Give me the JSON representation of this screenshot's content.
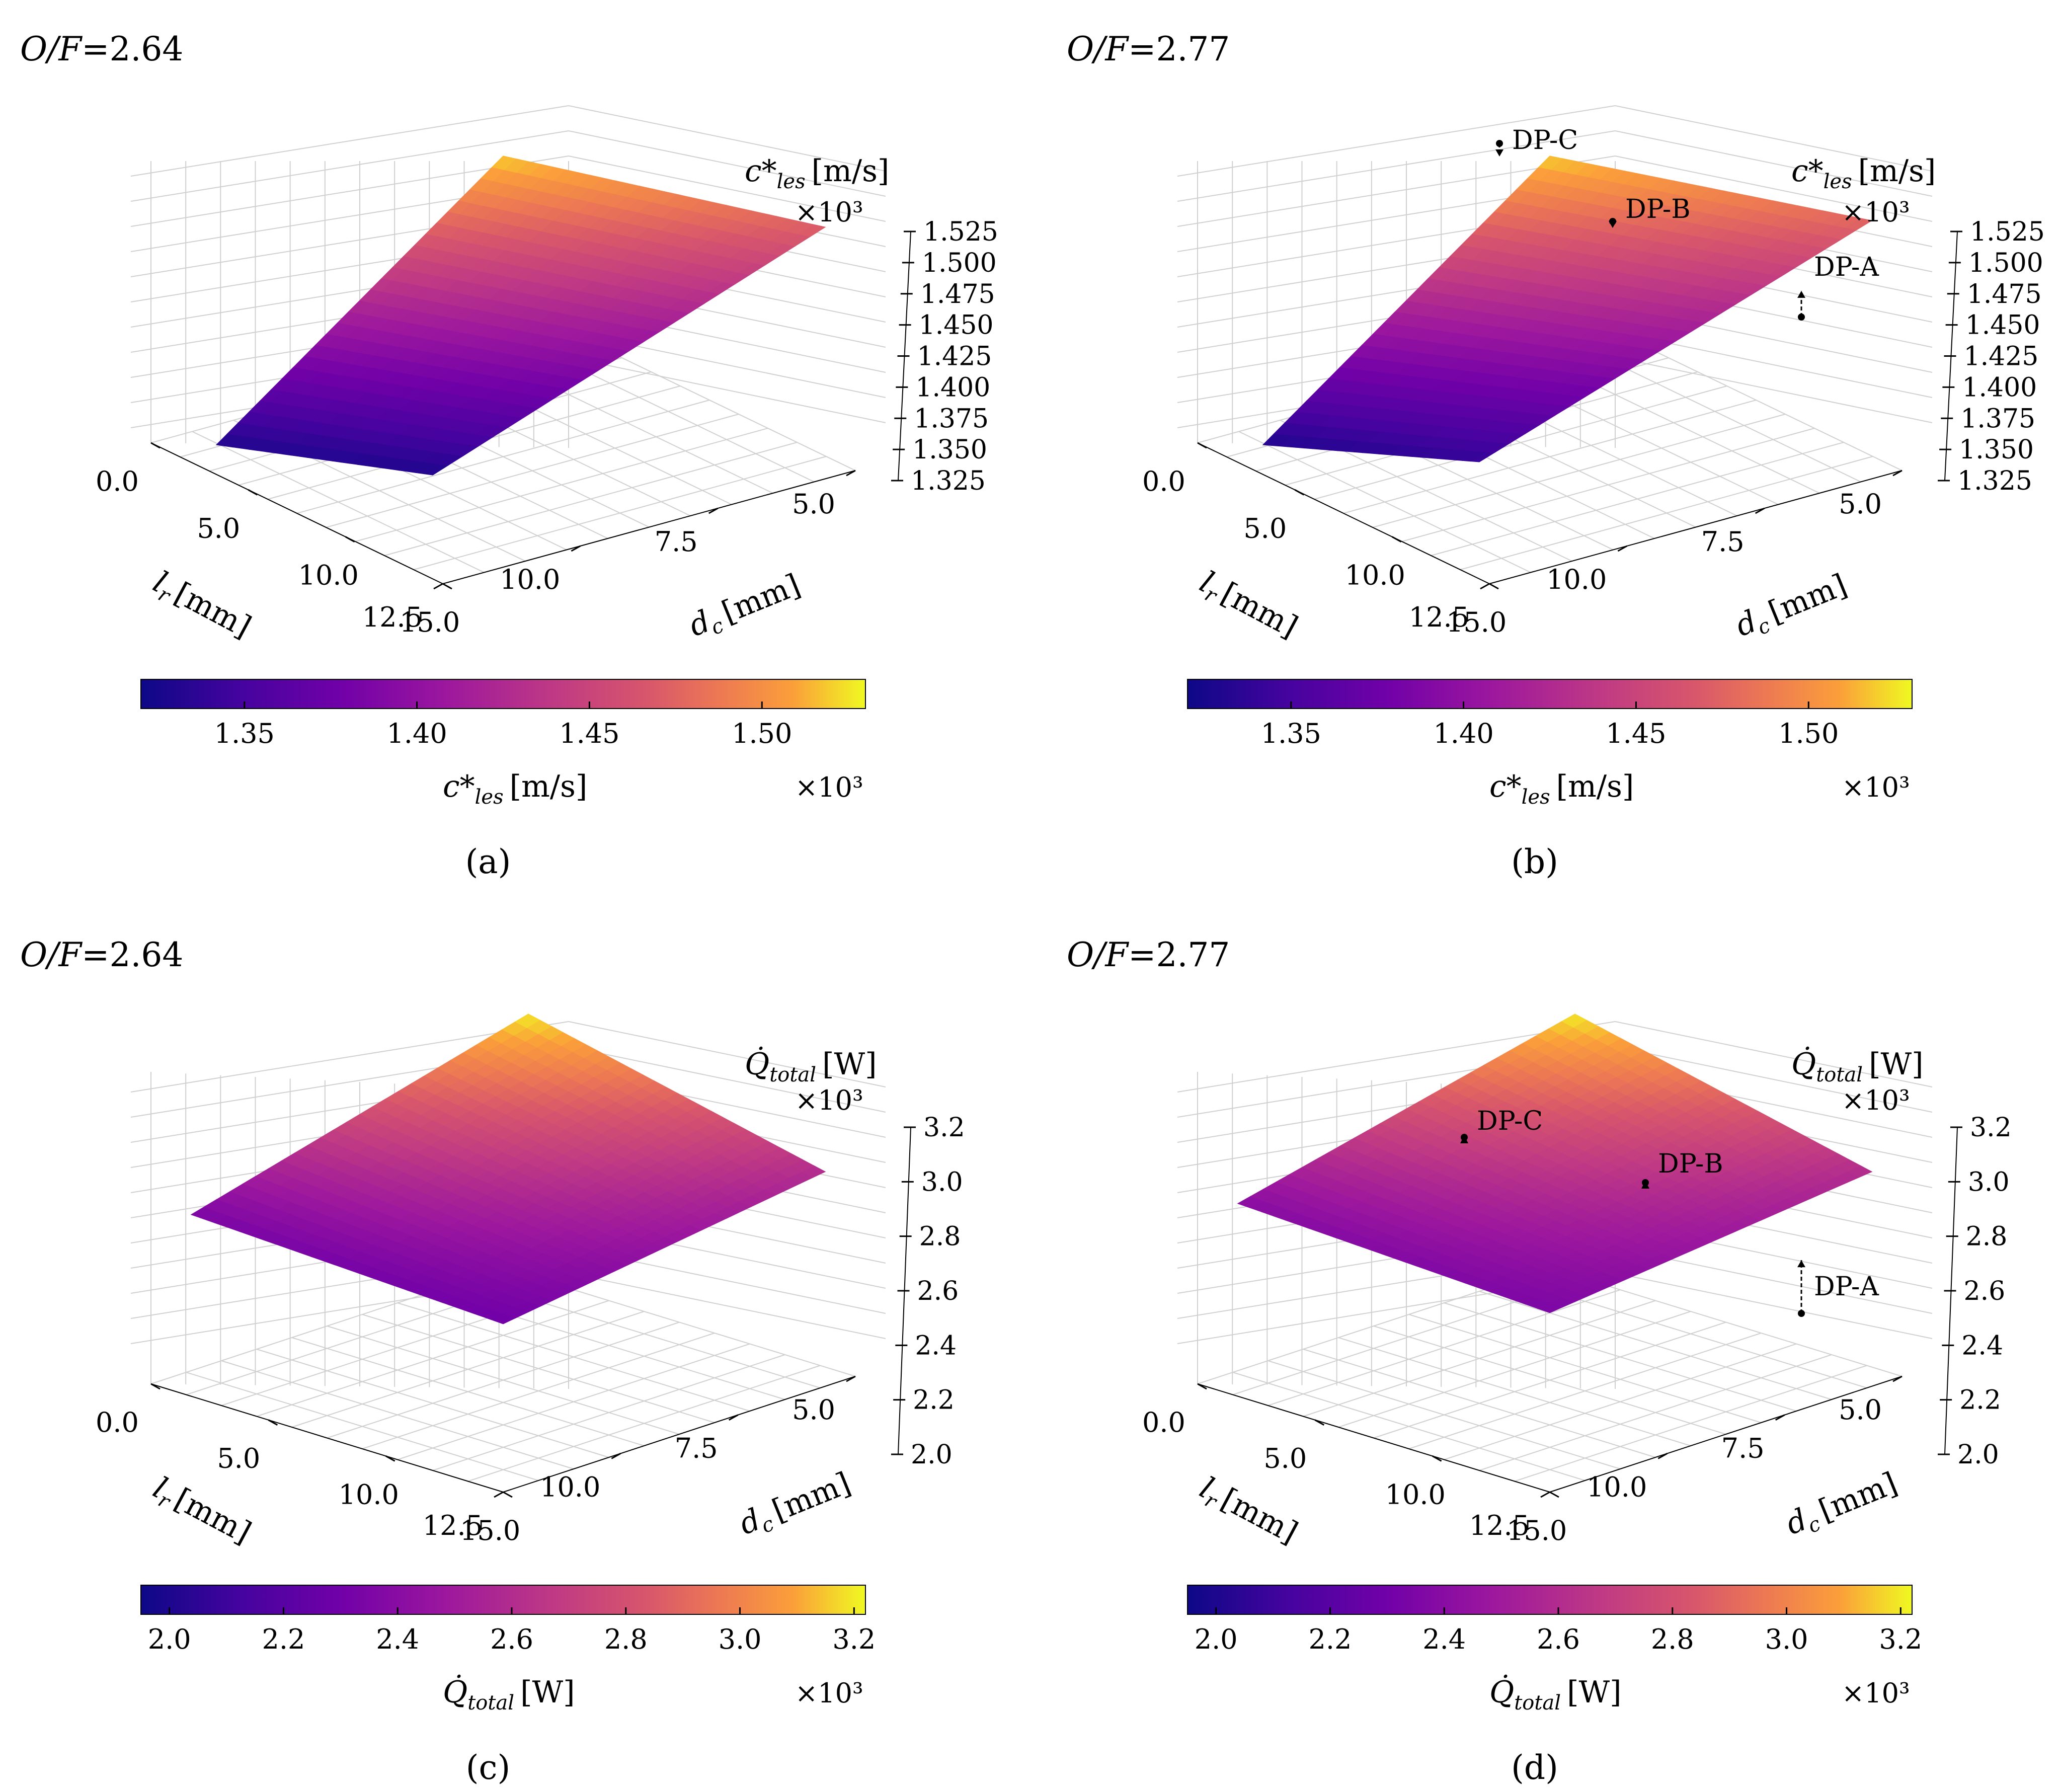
{
  "figure": {
    "panels_order": [
      "a",
      "b",
      "c",
      "d"
    ]
  },
  "chart_data": [
    {
      "type": "surface3d",
      "panel": "a",
      "heading_prefix": "O/F",
      "heading_eq": "=",
      "heading_value": "2.64",
      "caption": "(a)",
      "xlabel": "d",
      "xlabel_sub": "c",
      "xlabel_unit": "[mm]",
      "ylabel": "l",
      "ylabel_sub": "r",
      "ylabel_unit": "[mm]",
      "zlabel": "c*",
      "zlabel_sub": "les",
      "zlabel_unit": "[m/s]",
      "z_multiplier": "×10³",
      "x_ticks": [
        "5.0",
        "7.5",
        "10.0",
        "12.5"
      ],
      "y_ticks": [
        "0.0",
        "5.0",
        "10.0",
        "15.0"
      ],
      "z_ticks": [
        "1.525",
        "1.500",
        "1.475",
        "1.450",
        "1.425",
        "1.400",
        "1.375",
        "1.350",
        "1.325"
      ],
      "zlim": [
        1.32,
        1.535
      ],
      "colorbar": {
        "ticks": [
          "1.35",
          "1.40",
          "1.45",
          "1.50"
        ],
        "range": [
          1.32,
          1.53
        ],
        "label": "c*",
        "label_sub": "les",
        "label_unit": "[m/s]",
        "multiplier": "×10³"
      },
      "surface_corners_z": {
        "near": 1.33,
        "left": 1.33,
        "right": 1.475,
        "top": 1.525
      },
      "design_points": []
    },
    {
      "type": "surface3d",
      "panel": "b",
      "heading_prefix": "O/F",
      "heading_eq": "=",
      "heading_value": "2.77",
      "caption": "(b)",
      "xlabel": "d",
      "xlabel_sub": "c",
      "xlabel_unit": "[mm]",
      "ylabel": "l",
      "ylabel_sub": "r",
      "ylabel_unit": "[mm]",
      "zlabel": "c*",
      "zlabel_sub": "les",
      "zlabel_unit": "[m/s]",
      "z_multiplier": "×10³",
      "x_ticks": [
        "5.0",
        "7.5",
        "10.0",
        "12.5"
      ],
      "y_ticks": [
        "0.0",
        "5.0",
        "10.0",
        "15.0"
      ],
      "z_ticks": [
        "1.525",
        "1.500",
        "1.475",
        "1.450",
        "1.425",
        "1.400",
        "1.375",
        "1.350",
        "1.325"
      ],
      "zlim": [
        1.32,
        1.535
      ],
      "colorbar": {
        "ticks": [
          "1.35",
          "1.40",
          "1.45",
          "1.50"
        ],
        "range": [
          1.32,
          1.53
        ],
        "label": "c*",
        "label_sub": "les",
        "label_unit": "[m/s]",
        "multiplier": "×10³"
      },
      "surface_corners_z": {
        "near": 1.34,
        "left": 1.33,
        "right": 1.48,
        "top": 1.525
      },
      "design_points": [
        {
          "label": "DP-A",
          "z_from": 1.445,
          "z_to": 1.465
        },
        {
          "label": "DP-B",
          "z_from": 1.505,
          "z_to": 1.5
        },
        {
          "label": "DP-C",
          "z_from": 1.53,
          "z_to": 1.52
        }
      ]
    },
    {
      "type": "surface3d",
      "panel": "c",
      "heading_prefix": "O/F",
      "heading_eq": "=",
      "heading_value": "2.64",
      "caption": "(c)",
      "xlabel": "d",
      "xlabel_sub": "c",
      "xlabel_unit": "[mm]",
      "ylabel": "l",
      "ylabel_sub": "r",
      "ylabel_unit": "[mm]",
      "zlabel": "Q̇",
      "zlabel_sub": "total",
      "zlabel_unit": "[W]",
      "z_multiplier": "×10³",
      "x_ticks": [
        "5.0",
        "7.5",
        "10.0",
        "12.5"
      ],
      "y_ticks": [
        "0.0",
        "5.0",
        "10.0",
        "15.0"
      ],
      "z_ticks": [
        "3.2",
        "3.0",
        "2.8",
        "2.6",
        "2.4",
        "2.2",
        "2.0"
      ],
      "zlim": [
        1.95,
        3.22
      ],
      "colorbar": {
        "ticks": [
          "2.0",
          "2.2",
          "2.4",
          "2.6",
          "2.8",
          "3.0",
          "3.2"
        ],
        "range": [
          1.95,
          3.22
        ],
        "label": "Q̇",
        "label_sub": "total",
        "label_unit": "[W]",
        "multiplier": "×10³"
      },
      "surface_corners_z": {
        "near": 2.3,
        "left": 2.35,
        "right": 2.6,
        "top": 3.2
      },
      "design_points": []
    },
    {
      "type": "surface3d",
      "panel": "d",
      "heading_prefix": "O/F",
      "heading_eq": "=",
      "heading_value": "2.77",
      "caption": "(d)",
      "xlabel": "d",
      "xlabel_sub": "c",
      "xlabel_unit": "[mm]",
      "ylabel": "l",
      "ylabel_sub": "r",
      "ylabel_unit": "[mm]",
      "zlabel": "Q̇",
      "zlabel_sub": "total",
      "zlabel_unit": "[W]",
      "z_multiplier": "×10³",
      "x_ticks": [
        "5.0",
        "7.5",
        "10.0",
        "12.5"
      ],
      "y_ticks": [
        "0.0",
        "5.0",
        "10.0",
        "15.0"
      ],
      "z_ticks": [
        "3.2",
        "3.0",
        "2.8",
        "2.6",
        "2.4",
        "2.2",
        "2.0"
      ],
      "zlim": [
        1.95,
        3.22
      ],
      "colorbar": {
        "ticks": [
          "2.0",
          "2.2",
          "2.4",
          "2.6",
          "2.8",
          "3.0",
          "3.2"
        ],
        "range": [
          1.95,
          3.22
        ],
        "label": "Q̇",
        "label_sub": "total",
        "label_unit": "[W]",
        "multiplier": "×10³"
      },
      "surface_corners_z": {
        "near": 2.35,
        "left": 2.4,
        "right": 2.6,
        "top": 3.2
      },
      "design_points": [
        {
          "label": "DP-A",
          "z_from": 1.98,
          "z_to": 2.22
        },
        {
          "label": "DP-B",
          "z_from": 2.75,
          "z_to": 2.75
        },
        {
          "label": "DP-C",
          "z_from": 2.95,
          "z_to": 2.95
        }
      ]
    }
  ]
}
